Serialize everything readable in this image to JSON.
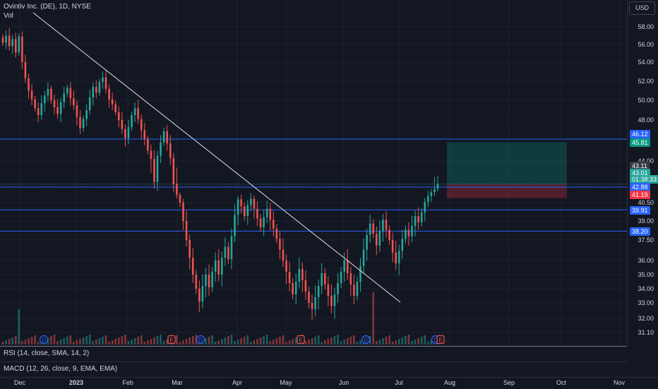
{
  "header": {
    "symbol": "Ovintiv Inc. (DE), 1D, NYSE",
    "volume_label": "Vol",
    "currency": "USD"
  },
  "price_axis": {
    "ticks": [
      "58.00",
      "56.00",
      "54.00",
      "52.00",
      "50.00",
      "48.00",
      "44.00",
      "40.50",
      "39.00",
      "37.50",
      "36.00",
      "35.00",
      "34.00",
      "33.00",
      "32.00",
      "31.10"
    ],
    "tags": [
      {
        "value": "46.12",
        "color": "#2962ff"
      },
      {
        "value": "45.81",
        "color": "#089981"
      },
      {
        "value": "43.11",
        "color": "#363a45"
      },
      {
        "value": "43.01",
        "color": "#26a69a"
      },
      {
        "value": "01:38:33",
        "color": "#26a69a"
      },
      {
        "value": "42.88",
        "color": "#2962ff"
      },
      {
        "value": "41.19",
        "color": "#f23645"
      },
      {
        "value": "39.91",
        "color": "#2962ff"
      },
      {
        "value": "38.20",
        "color": "#2962ff"
      }
    ]
  },
  "indicators": {
    "rsi": "RSI (14, close, SMA, 14, 2)",
    "macd": "MACD (12, 26, close, 9, EMA, EMA)"
  },
  "time_axis": [
    {
      "label": "Dec",
      "bold": false
    },
    {
      "label": "2023",
      "bold": true
    },
    {
      "label": "Feb",
      "bold": false
    },
    {
      "label": "Mar",
      "bold": false
    },
    {
      "label": "Apr",
      "bold": false
    },
    {
      "label": "May",
      "bold": false
    },
    {
      "label": "Jun",
      "bold": false
    },
    {
      "label": "Jul",
      "bold": false
    },
    {
      "label": "Aug",
      "bold": false
    },
    {
      "label": "Sep",
      "bold": false
    },
    {
      "label": "Oct",
      "bold": false
    },
    {
      "label": "Nov",
      "bold": false
    }
  ],
  "events": [
    "D",
    "E",
    "D",
    "E",
    "D",
    "D",
    "E"
  ],
  "colors": {
    "up": "#26a69a",
    "down": "#ef5350",
    "line": "#2962ff",
    "background": "#131722"
  },
  "chart_data": {
    "type": "candlestick",
    "levels": [
      46.12,
      42.88,
      39.91,
      38.2
    ],
    "trendline": {
      "from": [
        "2022-11-30",
        59.5
      ],
      "to": [
        "2023-07-10",
        33.0
      ]
    },
    "long_position": {
      "entry": 43.01,
      "target": 45.81,
      "stop": 41.19
    },
    "closes": [
      56.2,
      57.0,
      55.8,
      56.6,
      55.1,
      56.9,
      54.0,
      52.3,
      51.0,
      50.1,
      49.2,
      48.5,
      49.7,
      50.5,
      51.2,
      50.0,
      49.3,
      48.6,
      49.8,
      50.7,
      51.3,
      50.2,
      49.5,
      48.3,
      47.2,
      48.1,
      49.0,
      50.3,
      51.4,
      50.8,
      51.9,
      52.4,
      51.2,
      50.1,
      49.6,
      48.8,
      48.0,
      47.1,
      46.2,
      47.3,
      48.5,
      49.2,
      48.1,
      47.0,
      46.1,
      45.0,
      44.2,
      43.1,
      44.5,
      45.8,
      46.9,
      45.7,
      44.3,
      43.0,
      41.7,
      40.5,
      39.0,
      37.5,
      36.2,
      35.0,
      34.0,
      33.1,
      34.2,
      35.0,
      34.1,
      35.2,
      36.0,
      35.0,
      36.2,
      37.0,
      36.1,
      37.8,
      39.5,
      41.0,
      40.2,
      39.4,
      40.3,
      41.1,
      40.0,
      39.2,
      38.5,
      39.3,
      40.0,
      39.1,
      38.4,
      37.6,
      36.8,
      36.0,
      35.2,
      34.4,
      33.6,
      34.5,
      35.4,
      34.6,
      33.8,
      33.0,
      32.6,
      33.4,
      34.2,
      35.1,
      34.3,
      33.5,
      32.8,
      33.6,
      34.4,
      35.2,
      36.0,
      35.1,
      34.3,
      33.5,
      34.5,
      35.6,
      36.8,
      37.9,
      38.8,
      38.0,
      37.1,
      38.2,
      39.1,
      38.3,
      37.5,
      36.6,
      35.8,
      36.7,
      37.6,
      38.3,
      37.8,
      38.6,
      39.4,
      38.9,
      39.7,
      40.6,
      41.5,
      42.1,
      42.6,
      43.01
    ]
  }
}
